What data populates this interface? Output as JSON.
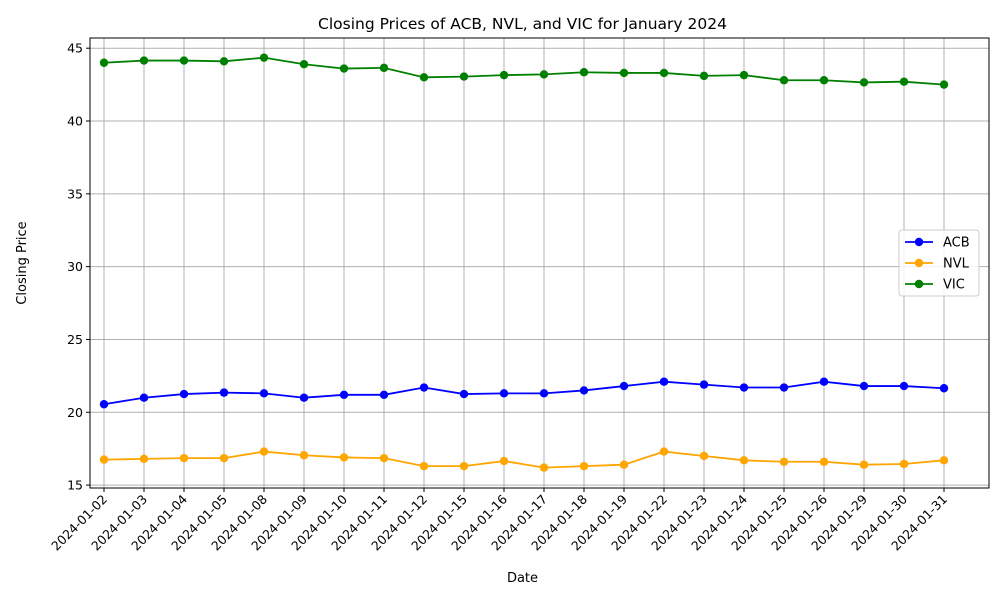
{
  "chart_data": {
    "type": "line",
    "title": "Closing Prices of ACB, NVL, and VIC for January 2024",
    "xlabel": "Date",
    "ylabel": "Closing Price",
    "ylim": [
      14.8,
      45.7
    ],
    "yticks": [
      15,
      20,
      25,
      30,
      35,
      40,
      45
    ],
    "grid": true,
    "legend_position": "center-right",
    "categories": [
      "2024-01-02",
      "2024-01-03",
      "2024-01-04",
      "2024-01-05",
      "2024-01-08",
      "2024-01-09",
      "2024-01-10",
      "2024-01-11",
      "2024-01-12",
      "2024-01-15",
      "2024-01-16",
      "2024-01-17",
      "2024-01-18",
      "2024-01-19",
      "2024-01-22",
      "2024-01-23",
      "2024-01-24",
      "2024-01-25",
      "2024-01-26",
      "2024-01-29",
      "2024-01-30",
      "2024-01-31"
    ],
    "series": [
      {
        "name": "ACB",
        "color": "#0000ff",
        "values": [
          20.55,
          21.0,
          21.25,
          21.35,
          21.3,
          21.0,
          21.2,
          21.2,
          21.7,
          21.25,
          21.3,
          21.3,
          21.5,
          21.8,
          22.1,
          21.9,
          21.7,
          21.7,
          22.1,
          21.8,
          21.8,
          21.65
        ]
      },
      {
        "name": "NVL",
        "color": "#ffa500",
        "values": [
          16.75,
          16.8,
          16.85,
          16.85,
          17.3,
          17.05,
          16.9,
          16.85,
          16.3,
          16.3,
          16.65,
          16.2,
          16.3,
          16.4,
          17.3,
          17.0,
          16.7,
          16.6,
          16.6,
          16.4,
          16.45,
          16.7
        ]
      },
      {
        "name": "VIC",
        "color": "#008000",
        "values": [
          44.0,
          44.15,
          44.15,
          44.1,
          44.35,
          43.9,
          43.6,
          43.65,
          43.0,
          43.05,
          43.15,
          43.2,
          43.35,
          43.3,
          43.3,
          43.1,
          43.15,
          42.8,
          42.8,
          42.65,
          42.7,
          42.5
        ]
      }
    ]
  }
}
